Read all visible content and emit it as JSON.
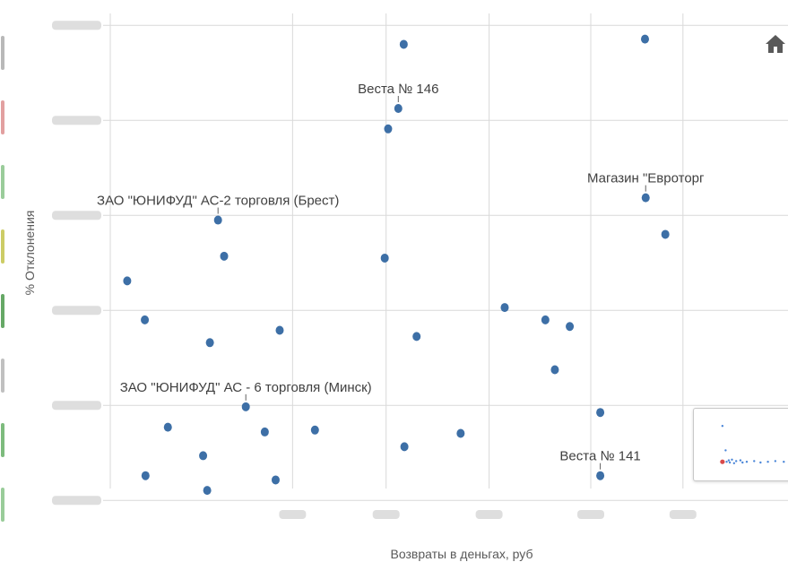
{
  "chart_data": {
    "type": "scatter",
    "ylabel": "% Отклонения",
    "xlabel": "Возвраты в деньгах, руб",
    "x_range": [
      0,
      1
    ],
    "y_range": [
      0,
      1
    ],
    "x_gridlines": [
      0.269,
      0.407,
      0.559,
      0.709,
      0.845
    ],
    "y_gridlines": [
      0.975,
      0.775,
      0.575,
      0.375,
      0.175,
      -0.025
    ],
    "points": [
      {
        "x": 0.025,
        "y": 0.437,
        "label": ""
      },
      {
        "x": 0.051,
        "y": 0.355,
        "label": ""
      },
      {
        "x": 0.052,
        "y": 0.027,
        "label": ""
      },
      {
        "x": 0.085,
        "y": 0.129,
        "label": ""
      },
      {
        "x": 0.137,
        "y": 0.069,
        "label": ""
      },
      {
        "x": 0.143,
        "y": -0.004,
        "label": ""
      },
      {
        "x": 0.147,
        "y": 0.307,
        "label": ""
      },
      {
        "x": 0.159,
        "y": 0.565,
        "label": "ЗАО \"ЮНИФУД\" АС-2 торговля (Брест)"
      },
      {
        "x": 0.168,
        "y": 0.489,
        "label": ""
      },
      {
        "x": 0.2,
        "y": 0.172,
        "label": "ЗАО \"ЮНИФУД\" АС - 6 торговля (Минск)"
      },
      {
        "x": 0.228,
        "y": 0.119,
        "label": ""
      },
      {
        "x": 0.244,
        "y": 0.018,
        "label": ""
      },
      {
        "x": 0.25,
        "y": 0.333,
        "label": ""
      },
      {
        "x": 0.302,
        "y": 0.123,
        "label": ""
      },
      {
        "x": 0.405,
        "y": 0.485,
        "label": ""
      },
      {
        "x": 0.41,
        "y": 0.757,
        "label": ""
      },
      {
        "x": 0.425,
        "y": 0.8,
        "label": "Веста № 146"
      },
      {
        "x": 0.433,
        "y": 0.935,
        "label": ""
      },
      {
        "x": 0.434,
        "y": 0.088,
        "label": ""
      },
      {
        "x": 0.452,
        "y": 0.32,
        "label": ""
      },
      {
        "x": 0.517,
        "y": 0.116,
        "label": ""
      },
      {
        "x": 0.582,
        "y": 0.381,
        "label": ""
      },
      {
        "x": 0.642,
        "y": 0.355,
        "label": ""
      },
      {
        "x": 0.656,
        "y": 0.25,
        "label": ""
      },
      {
        "x": 0.678,
        "y": 0.341,
        "label": ""
      },
      {
        "x": 0.723,
        "y": 0.16,
        "label": ""
      },
      {
        "x": 0.723,
        "y": 0.027,
        "label": "Веста № 141"
      },
      {
        "x": 0.789,
        "y": 0.946,
        "label": ""
      },
      {
        "x": 0.79,
        "y": 0.612,
        "label": "Магазин \"Евроторг"
      },
      {
        "x": 0.819,
        "y": 0.535,
        "label": ""
      }
    ]
  },
  "colors": {
    "point": "#3d6fa6",
    "grid": "#d9d9d9",
    "axis_text": "#595959",
    "label_text": "#404040",
    "mini_point": "#4a86d8",
    "mini_highlight": "#d94a4a"
  },
  "side_strip": [
    {
      "color": "#b8b8b8"
    },
    {
      "color": "#e2a0a0"
    },
    {
      "color": "#9acc9a"
    },
    {
      "color": "#cccc66"
    },
    {
      "color": "#66a866"
    },
    {
      "color": "#c0c0c0"
    },
    {
      "color": "#7dbb7d"
    },
    {
      "color": "#99cc99"
    }
  ],
  "icons": {
    "home": "home-icon",
    "mini_home": "home-icon-small"
  }
}
